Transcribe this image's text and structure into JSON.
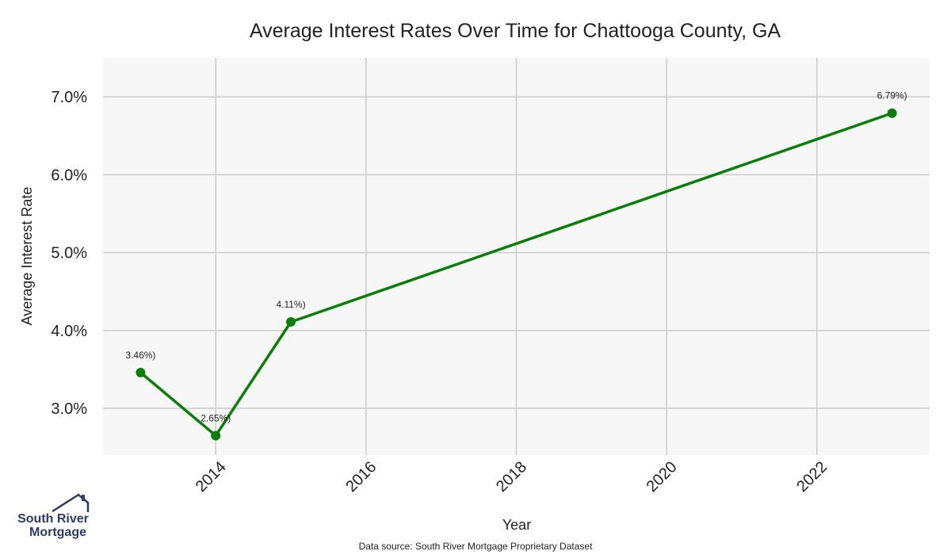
{
  "chart_data": {
    "type": "line",
    "title": "Average Interest Rates Over Time for Chattooga County, GA",
    "xlabel": "Year",
    "ylabel": "Average Interest Rate",
    "x_ticks": [
      "2014",
      "2016",
      "2018",
      "2020",
      "2022"
    ],
    "y_ticks": [
      "3.0%",
      "4.0%",
      "5.0%",
      "6.0%",
      "7.0%"
    ],
    "xlim": [
      2012.5,
      2023.5
    ],
    "ylim": [
      2.4,
      7.5
    ],
    "grid": true,
    "series": [
      {
        "color": "#0a7d0a",
        "x": [
          2013,
          2014,
          2015,
          2023
        ],
        "y": [
          3.46,
          2.65,
          4.11,
          6.79
        ],
        "labels": [
          "3.46%)",
          "2.65%)",
          "4.11%)",
          "6.79%)"
        ]
      }
    ]
  },
  "footer": {
    "source": "Data source: South River Mortgage Proprietary Dataset"
  },
  "logo": {
    "line1": "South River",
    "line2": "Mortgage",
    "color": "#2d3a6b"
  }
}
